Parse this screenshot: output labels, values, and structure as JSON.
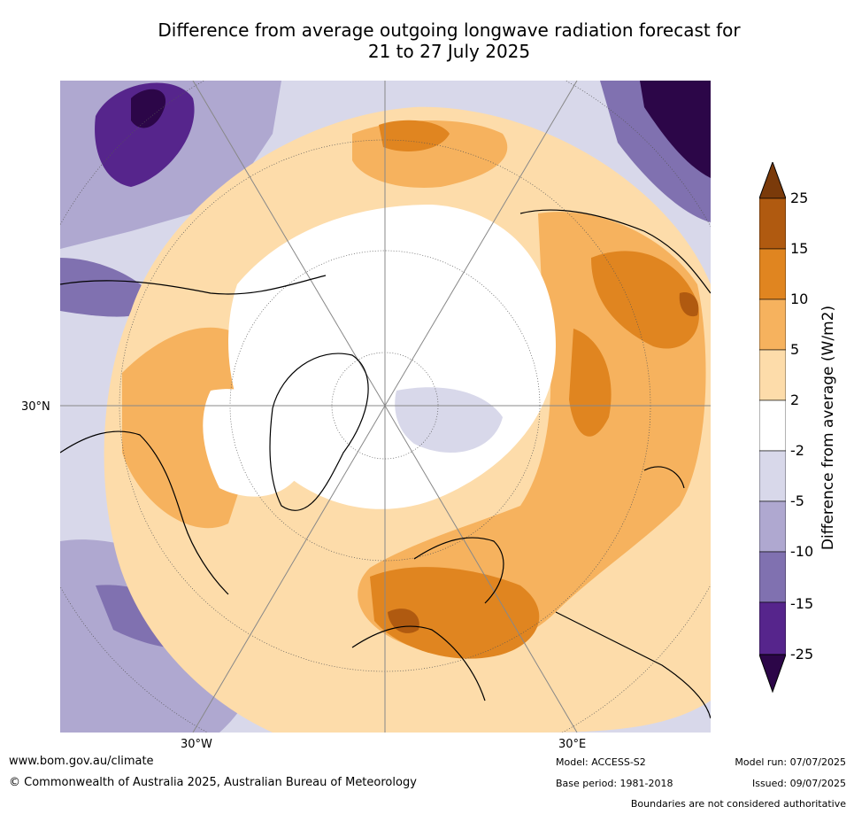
{
  "title": {
    "line1": "Difference from average outgoing longwave radiation forecast for",
    "line2": "21 to 27 July 2025"
  },
  "axis_labels": {
    "lat_30n": "30°N",
    "lon_30w": "30°W",
    "lon_30e": "30°E"
  },
  "colorbar": {
    "title": "Difference from average (W/m2)",
    "ticks": [
      "25",
      "15",
      "10",
      "5",
      "2",
      "-2",
      "-5",
      "-10",
      "-15",
      "-25"
    ],
    "colors": [
      "#7a3a0a",
      "#b05a10",
      "#e08520",
      "#f6b25e",
      "#fddcaa",
      "#ffffff",
      "#d8d8ea",
      "#afa8d0",
      "#8071b0",
      "#56258c",
      "#2c0648"
    ]
  },
  "footer": {
    "url": "www.bom.gov.au/climate",
    "copyright": "© Commonwealth of Australia 2025, Australian Bureau of Meteorology",
    "model": "Model: ACCESS-S2",
    "base_period": "Base period: 1981-2018",
    "model_run": "Model run: 07/07/2025",
    "issued": "Issued: 09/07/2025",
    "disclaimer": "Boundaries are not considered authoritative"
  }
}
